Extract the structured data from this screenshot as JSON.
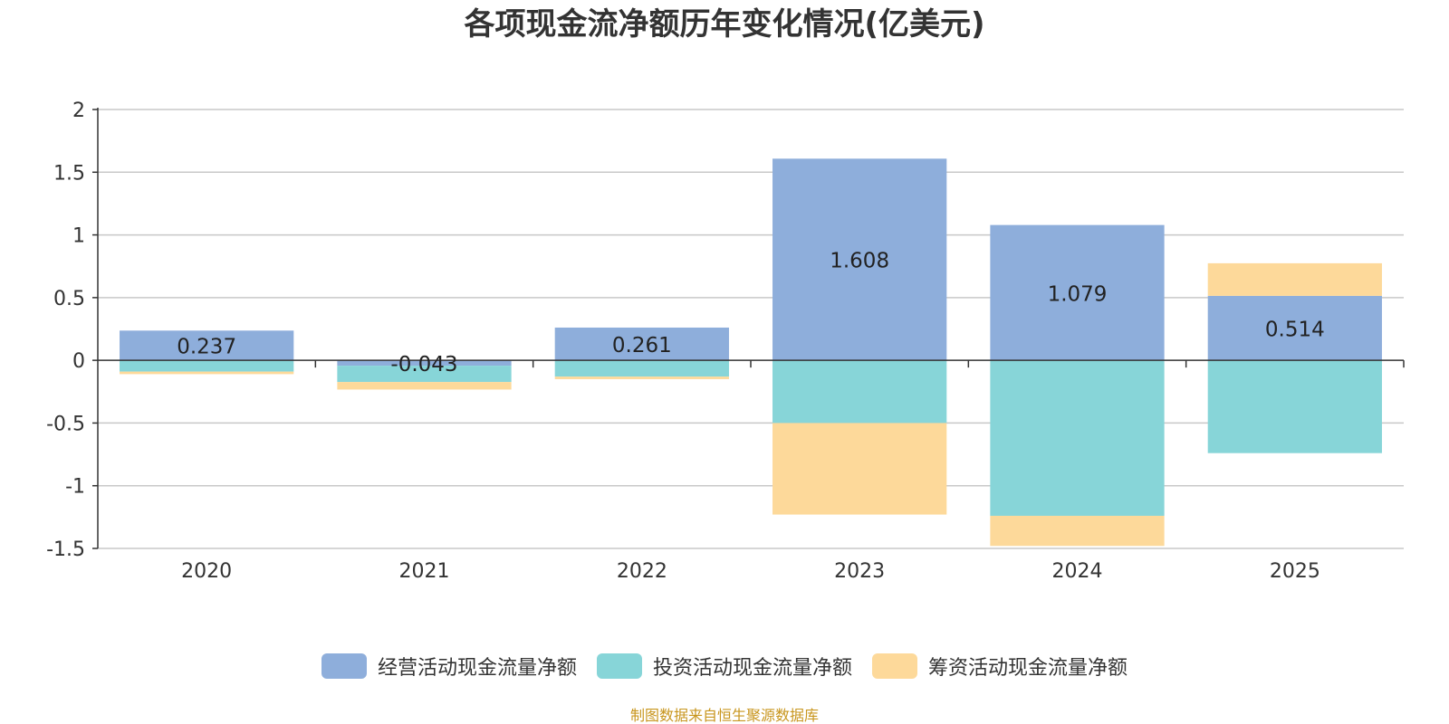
{
  "chart_data": {
    "type": "bar",
    "stacked": true,
    "title": "各项现金流净额历年变化情况(亿美元)",
    "categories": [
      "2020",
      "2021",
      "2022",
      "2023",
      "2024",
      "2025"
    ],
    "series": [
      {
        "name": "经营活动现金流量净额",
        "color": "#8eaedb",
        "values": [
          0.237,
          -0.043,
          0.261,
          1.608,
          1.079,
          0.514
        ]
      },
      {
        "name": "投资活动现金流量净额",
        "color": "#87d5d8",
        "values": [
          -0.09,
          -0.13,
          -0.13,
          -0.5,
          -1.24,
          -0.74
        ]
      },
      {
        "name": "筹资活动现金流量净额",
        "color": "#fdd99a",
        "values": [
          -0.02,
          -0.06,
          -0.02,
          -0.73,
          -0.24,
          0.26
        ]
      }
    ],
    "data_labels": [
      "0.237",
      "-0.043",
      "0.261",
      "1.608",
      "1.079",
      "0.514"
    ],
    "y_ticks": [
      "2",
      "1.5",
      "1",
      "0.5",
      "0",
      "-0.5",
      "-1",
      "-1.5"
    ],
    "ylim": [
      -1.5,
      2
    ],
    "grid": true,
    "legend_position": "bottom"
  },
  "source_note": "制图数据来自恒生聚源数据库"
}
